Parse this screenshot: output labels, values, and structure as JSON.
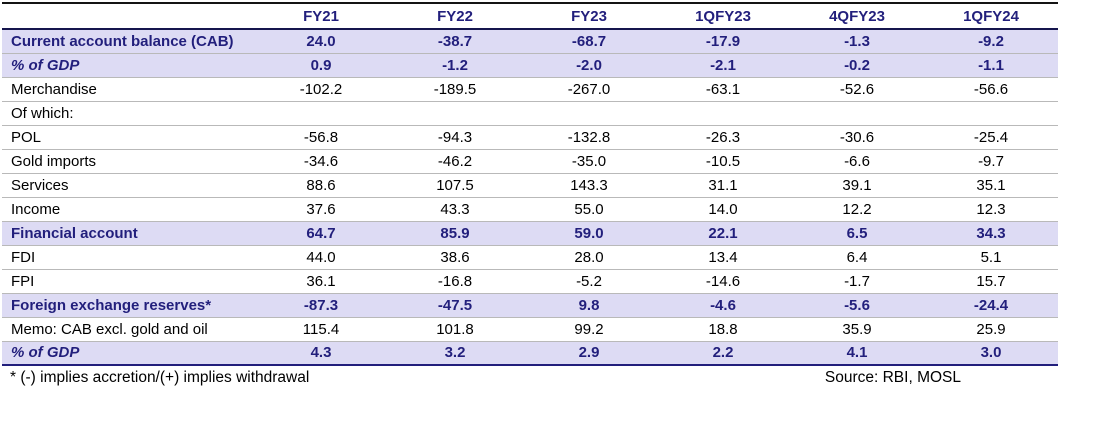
{
  "table": {
    "columns": [
      "",
      "FY21",
      "FY22",
      "FY23",
      "1QFY23",
      "4QFY23",
      "1QFY24"
    ],
    "rows": [
      {
        "label": "Current account balance (CAB)",
        "values": [
          "24.0",
          "-38.7",
          "-68.7",
          "-17.9",
          "-1.3",
          "-9.2"
        ],
        "style": "highlight"
      },
      {
        "label": "% of GDP",
        "values": [
          "0.9",
          "-1.2",
          "-2.0",
          "-2.1",
          "-0.2",
          "-1.1"
        ],
        "style": "highlight-italic"
      },
      {
        "label": "Merchandise",
        "values": [
          "-102.2",
          "-189.5",
          "-267.0",
          "-63.1",
          "-52.6",
          "-56.6"
        ],
        "style": "normal"
      },
      {
        "label": "Of which:",
        "values": [
          "",
          "",
          "",
          "",
          "",
          ""
        ],
        "style": "normal"
      },
      {
        "label": "POL",
        "values": [
          "-56.8",
          "-94.3",
          "-132.8",
          "-26.3",
          "-30.6",
          "-25.4"
        ],
        "style": "normal"
      },
      {
        "label": "Gold imports",
        "values": [
          "-34.6",
          "-46.2",
          "-35.0",
          "-10.5",
          "-6.6",
          "-9.7"
        ],
        "style": "normal"
      },
      {
        "label": "Services",
        "values": [
          "88.6",
          "107.5",
          "143.3",
          "31.1",
          "39.1",
          "35.1"
        ],
        "style": "normal"
      },
      {
        "label": "Income",
        "values": [
          "37.6",
          "43.3",
          "55.0",
          "14.0",
          "12.2",
          "12.3"
        ],
        "style": "normal"
      },
      {
        "label": "Financial account",
        "values": [
          "64.7",
          "85.9",
          "59.0",
          "22.1",
          "6.5",
          "34.3"
        ],
        "style": "highlight"
      },
      {
        "label": "FDI",
        "values": [
          "44.0",
          "38.6",
          "28.0",
          "13.4",
          "6.4",
          "5.1"
        ],
        "style": "normal"
      },
      {
        "label": "FPI",
        "values": [
          "36.1",
          "-16.8",
          "-5.2",
          "-14.6",
          "-1.7",
          "15.7"
        ],
        "style": "normal"
      },
      {
        "label": "Foreign exchange reserves*",
        "values": [
          "-87.3",
          "-47.5",
          "9.8",
          "-4.6",
          "-5.6",
          "-24.4"
        ],
        "style": "highlight"
      },
      {
        "label": "Memo: CAB excl. gold and oil",
        "values": [
          "115.4",
          "101.8",
          "99.2",
          "18.8",
          "35.9",
          "25.9"
        ],
        "style": "normal"
      },
      {
        "label": "% of GDP",
        "values": [
          "4.3",
          "3.2",
          "2.9",
          "2.2",
          "4.1",
          "3.0"
        ],
        "style": "highlight-italic"
      }
    ]
  },
  "footer": {
    "footnote": "* (-) implies accretion/(+) implies withdrawal",
    "source": "Source: RBI, MOSL"
  },
  "colors": {
    "navy_text": "#221f7c",
    "highlight_background": "#dddbf4",
    "grid_line": "#b9b9b9",
    "dark_line": "#141414"
  }
}
